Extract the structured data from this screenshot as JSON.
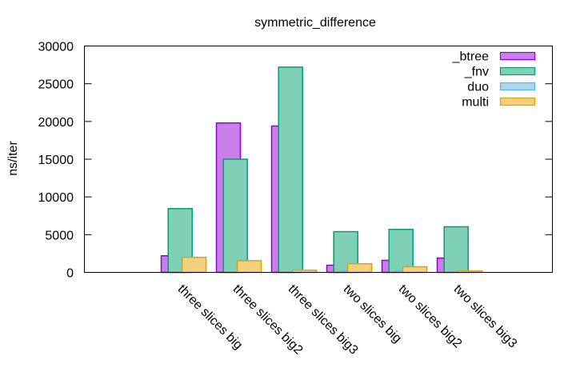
{
  "chart_data": {
    "type": "bar",
    "title": "symmetric_difference",
    "xlabel": "",
    "ylabel": "ns/iter",
    "ylim": [
      0,
      30000
    ],
    "yticks": [
      0,
      5000,
      10000,
      15000,
      20000,
      25000,
      30000
    ],
    "grid": false,
    "legend_position": "top-right",
    "categories": [
      "three slices big",
      "three slices big2",
      "three slices big3",
      "two slices big",
      "two slices big2",
      "two slices big3"
    ],
    "series": [
      {
        "name": "_btree",
        "values": [
          2200,
          19800,
          19400,
          950,
          1600,
          1900
        ],
        "fill": "#c880e8",
        "stroke": "#9400d3"
      },
      {
        "name": "_fnv",
        "values": [
          8450,
          15000,
          27200,
          5400,
          5700,
          6050
        ],
        "fill": "#80d0b8",
        "stroke": "#009e73"
      },
      {
        "name": "duo",
        "values": [
          0,
          0,
          0,
          180,
          180,
          100
        ],
        "fill": "#a8d8f0",
        "stroke": "#56b4e9"
      },
      {
        "name": "multi",
        "values": [
          2000,
          1550,
          300,
          1150,
          750,
          200
        ],
        "fill": "#f2d080",
        "stroke": "#e69f00"
      }
    ]
  }
}
